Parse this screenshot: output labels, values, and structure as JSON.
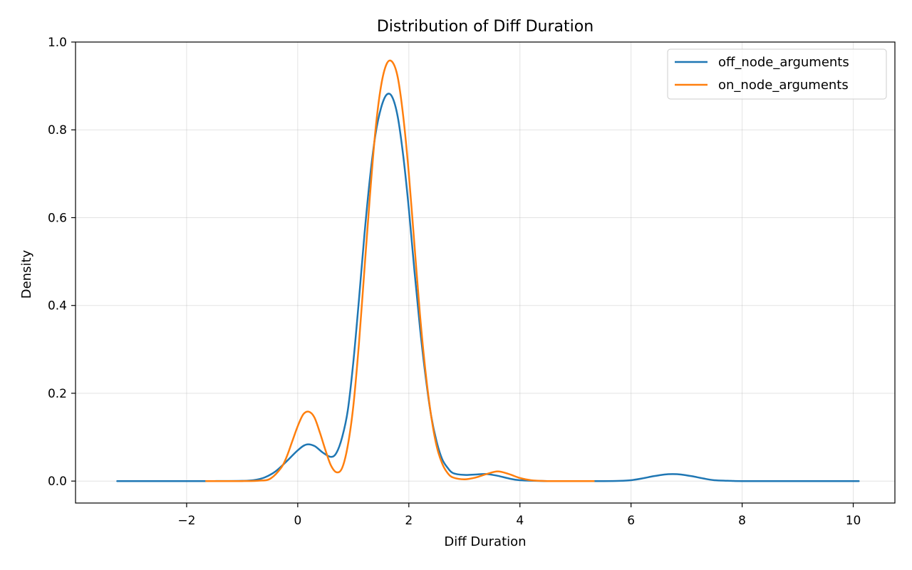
{
  "chart_data": {
    "type": "line",
    "title": "Distribution of Diff Duration",
    "xlabel": "Diff Duration",
    "ylabel": "Density",
    "xlim": [
      -4.0,
      10.75
    ],
    "ylim": [
      -0.05,
      1.0
    ],
    "xticks": [
      -2,
      0,
      2,
      4,
      6,
      8,
      10
    ],
    "xtick_labels": [
      "−2",
      "0",
      "2",
      "4",
      "6",
      "8",
      "10"
    ],
    "yticks": [
      0.0,
      0.2,
      0.4,
      0.6,
      0.8,
      1.0
    ],
    "ytick_labels": [
      "0.0",
      "0.2",
      "0.4",
      "0.6",
      "0.8",
      "1.0"
    ],
    "grid": true,
    "legend_position": "top-right",
    "series": [
      {
        "name": "off_node_arguments",
        "color": "#1f77b4",
        "points": [
          [
            -3.25,
            0.0
          ],
          [
            -2.0,
            0.0
          ],
          [
            -1.5,
            0.0
          ],
          [
            -1.0,
            0.0005
          ],
          [
            -0.8,
            0.002
          ],
          [
            -0.6,
            0.008
          ],
          [
            -0.4,
            0.022
          ],
          [
            -0.2,
            0.045
          ],
          [
            0.0,
            0.07
          ],
          [
            0.15,
            0.083
          ],
          [
            0.3,
            0.08
          ],
          [
            0.45,
            0.065
          ],
          [
            0.6,
            0.055
          ],
          [
            0.7,
            0.065
          ],
          [
            0.8,
            0.1
          ],
          [
            0.9,
            0.16
          ],
          [
            1.0,
            0.27
          ],
          [
            1.1,
            0.41
          ],
          [
            1.2,
            0.56
          ],
          [
            1.3,
            0.69
          ],
          [
            1.4,
            0.79
          ],
          [
            1.5,
            0.85
          ],
          [
            1.6,
            0.88
          ],
          [
            1.7,
            0.875
          ],
          [
            1.8,
            0.83
          ],
          [
            1.9,
            0.74
          ],
          [
            2.0,
            0.62
          ],
          [
            2.1,
            0.48
          ],
          [
            2.2,
            0.35
          ],
          [
            2.3,
            0.24
          ],
          [
            2.4,
            0.15
          ],
          [
            2.5,
            0.09
          ],
          [
            2.6,
            0.05
          ],
          [
            2.7,
            0.03
          ],
          [
            2.8,
            0.018
          ],
          [
            3.0,
            0.014
          ],
          [
            3.2,
            0.015
          ],
          [
            3.4,
            0.016
          ],
          [
            3.6,
            0.012
          ],
          [
            3.8,
            0.006
          ],
          [
            4.0,
            0.002
          ],
          [
            4.5,
            0.0
          ],
          [
            5.0,
            0.0
          ],
          [
            5.5,
            0.0
          ],
          [
            5.8,
            0.0005
          ],
          [
            6.0,
            0.002
          ],
          [
            6.2,
            0.006
          ],
          [
            6.4,
            0.011
          ],
          [
            6.6,
            0.015
          ],
          [
            6.75,
            0.016
          ],
          [
            6.9,
            0.015
          ],
          [
            7.1,
            0.011
          ],
          [
            7.3,
            0.006
          ],
          [
            7.5,
            0.002
          ],
          [
            7.8,
            0.0005
          ],
          [
            8.0,
            0.0
          ],
          [
            9.0,
            0.0
          ],
          [
            10.1,
            0.0
          ]
        ]
      },
      {
        "name": "on_node_arguments",
        "color": "#ff7f0e",
        "points": [
          [
            -1.65,
            0.0
          ],
          [
            -1.0,
            0.0
          ],
          [
            -0.7,
            0.001
          ],
          [
            -0.5,
            0.005
          ],
          [
            -0.3,
            0.03
          ],
          [
            -0.2,
            0.055
          ],
          [
            -0.1,
            0.09
          ],
          [
            0.0,
            0.125
          ],
          [
            0.1,
            0.152
          ],
          [
            0.2,
            0.158
          ],
          [
            0.3,
            0.145
          ],
          [
            0.4,
            0.11
          ],
          [
            0.5,
            0.07
          ],
          [
            0.6,
            0.035
          ],
          [
            0.7,
            0.02
          ],
          [
            0.8,
            0.03
          ],
          [
            0.9,
            0.08
          ],
          [
            1.0,
            0.17
          ],
          [
            1.1,
            0.31
          ],
          [
            1.2,
            0.48
          ],
          [
            1.3,
            0.65
          ],
          [
            1.4,
            0.8
          ],
          [
            1.5,
            0.9
          ],
          [
            1.6,
            0.95
          ],
          [
            1.7,
            0.955
          ],
          [
            1.8,
            0.92
          ],
          [
            1.9,
            0.83
          ],
          [
            2.0,
            0.7
          ],
          [
            2.1,
            0.54
          ],
          [
            2.2,
            0.38
          ],
          [
            2.3,
            0.25
          ],
          [
            2.4,
            0.15
          ],
          [
            2.5,
            0.08
          ],
          [
            2.6,
            0.04
          ],
          [
            2.7,
            0.018
          ],
          [
            2.8,
            0.008
          ],
          [
            3.0,
            0.004
          ],
          [
            3.2,
            0.008
          ],
          [
            3.4,
            0.016
          ],
          [
            3.6,
            0.022
          ],
          [
            3.8,
            0.016
          ],
          [
            4.0,
            0.007
          ],
          [
            4.2,
            0.002
          ],
          [
            4.5,
            0.0
          ],
          [
            5.0,
            0.0
          ],
          [
            5.33,
            0.0
          ]
        ]
      }
    ]
  }
}
